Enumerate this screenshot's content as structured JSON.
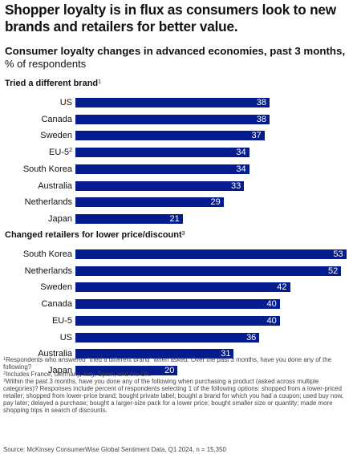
{
  "header": {
    "headline": "Shopper loyalty is in flux as consumers look to new brands and retailers for better value.",
    "subtitle": "Consumer loyalty changes in advanced economies, past 3 months,",
    "unit": "% of respondents"
  },
  "colors": {
    "bar": "#051c8f",
    "bar_text": "#ffffff"
  },
  "chart_data": [
    {
      "type": "bar",
      "orientation": "horizontal",
      "title": "Tried a different brand",
      "title_footnote": "1",
      "categories": [
        "US",
        "Canada",
        "Sweden",
        "EU-5",
        "South Korea",
        "Australia",
        "Netherlands",
        "Japan"
      ],
      "category_footnotes": {
        "EU-5": "2"
      },
      "values": [
        38,
        38,
        37,
        34,
        34,
        33,
        29,
        21
      ],
      "xlim": [
        0,
        55
      ],
      "data_labels": "inside-end",
      "grid": false
    },
    {
      "type": "bar",
      "orientation": "horizontal",
      "title": "Changed retailers for lower price/discount",
      "title_footnote": "3",
      "categories": [
        "South Korea",
        "Netherlands",
        "Sweden",
        "Canada",
        "EU-5",
        "US",
        "Australia",
        "Japan"
      ],
      "category_footnotes": {},
      "values": [
        53,
        52,
        42,
        40,
        40,
        36,
        31,
        20
      ],
      "xlim": [
        0,
        55
      ],
      "data_labels": "inside-end",
      "grid": false
    }
  ],
  "footnotes": [
    {
      "mark": "1",
      "text": "Respondents who answered \"tried a different brand\" when asked: Over the past 3 months, have you done any of the following?"
    },
    {
      "mark": "2",
      "text": "Includes France, Germany, Italy, Spain, and the UK."
    },
    {
      "mark": "3",
      "text": "Within the past 3 months, have you done any of the following when purchasing a product (asked across multiple categories)? Responses include percent of respondents selecting 1 of the following options: shopped from a lower-priced retailer; shopped from lower-price brand; bought private label; bought a brand for which you had a coupon; used buy now, pay later; delayed a purchase; bought a larger-size pack for a lower price; bought smaller size or quantity; made more shopping trips in search of discounts."
    }
  ],
  "source": "Source: McKinsey ConsumerWise Global Sentiment Data, Q1 2024, n = 15,350"
}
